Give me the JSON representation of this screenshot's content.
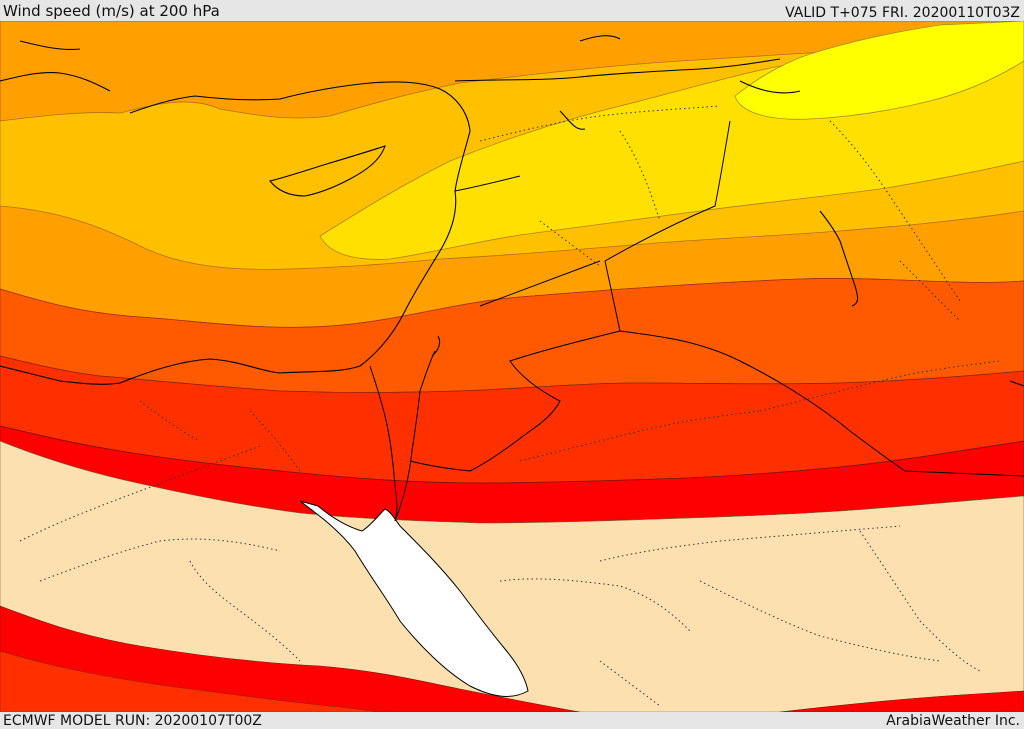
{
  "header": {
    "title": "Wind speed (m/s) at 200 hPa",
    "valid": "VALID T+075 FRI. 20200110T03Z"
  },
  "footer": {
    "model_run": "ECMWF MODEL RUN: 20200107T00Z",
    "credit": "ArabiaWeather Inc."
  },
  "colors": {
    "yellow": "#ffff00",
    "gold": "#ffe000",
    "amber": "#ffc000",
    "light_orange": "#ffa000",
    "orange": "#ff7f00",
    "dark_orange": "#ff5a00",
    "red_orange": "#ff3000",
    "red": "#ff0000",
    "calm": "#fde0b0",
    "sea": "#ffffff"
  }
}
